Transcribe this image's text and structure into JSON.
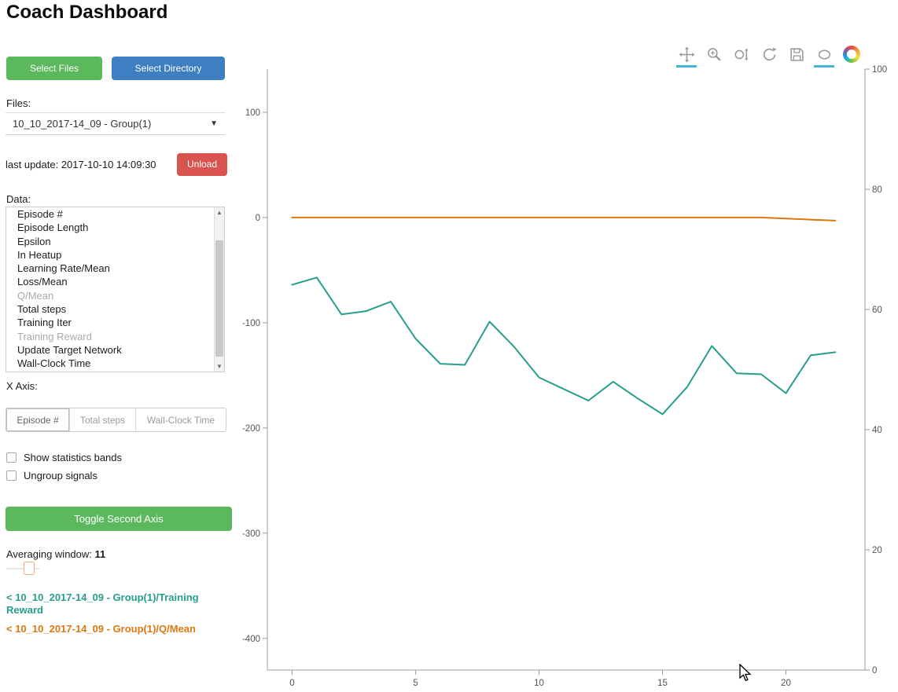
{
  "header": {
    "title": "Coach Dashboard"
  },
  "sidebar": {
    "select_files_label": "Select Files",
    "select_directory_label": "Select Directory",
    "files_label": "Files:",
    "files_selected": "10_10_2017-14_09 - Group(1)",
    "last_update": "last update: 2017-10-10 14:09:30",
    "unload_label": "Unload",
    "data_label": "Data:",
    "data_items": [
      {
        "label": "Episode #",
        "selected": false
      },
      {
        "label": "Episode Length",
        "selected": false
      },
      {
        "label": "Epsilon",
        "selected": false
      },
      {
        "label": "In Heatup",
        "selected": false
      },
      {
        "label": "Learning Rate/Mean",
        "selected": false
      },
      {
        "label": "Loss/Mean",
        "selected": false
      },
      {
        "label": "Q/Mean",
        "selected": true
      },
      {
        "label": "Total steps",
        "selected": false
      },
      {
        "label": "Training Iter",
        "selected": false
      },
      {
        "label": "Training Reward",
        "selected": true
      },
      {
        "label": "Update Target Network",
        "selected": false
      },
      {
        "label": "Wall-Clock Time",
        "selected": false
      }
    ],
    "x_axis_label": "X Axis:",
    "x_axis_options": [
      {
        "label": "Episode #",
        "active": true
      },
      {
        "label": "Total steps",
        "active": false
      },
      {
        "label": "Wall-Clock Time",
        "active": false
      }
    ],
    "checkboxes": [
      {
        "label": "Show statistics bands",
        "checked": false
      },
      {
        "label": "Ungroup signals",
        "checked": false
      }
    ],
    "toggle_second_axis_label": "Toggle Second Axis",
    "averaging_window_label": "Averaging window:",
    "averaging_window_value": "11",
    "legend": [
      {
        "label": "< 10_10_2017-14_09 - Group(1)/Training Reward",
        "color": "#279e8c"
      },
      {
        "label": "< 10_10_2017-14_09 - Group(1)/Q/Mean",
        "color": "#e0760f"
      }
    ]
  },
  "toolbar": {
    "tools": [
      {
        "name": "pan",
        "active": true
      },
      {
        "name": "box-zoom",
        "active": false
      },
      {
        "name": "wheel-zoom",
        "active": false
      },
      {
        "name": "reset",
        "active": false
      },
      {
        "name": "save",
        "active": false
      },
      {
        "name": "hover",
        "active": true
      }
    ],
    "active_underline_color": "#45b5dd"
  },
  "chart_data": {
    "type": "line",
    "x": [
      0,
      1,
      2,
      3,
      4,
      5,
      6,
      7,
      8,
      9,
      10,
      11,
      12,
      13,
      14,
      15,
      16,
      17,
      18,
      19,
      20,
      21,
      22
    ],
    "series": [
      {
        "name": "10_10_2017-14_09 - Group(1)/Training Reward",
        "color": "#279e8c",
        "axis": "left",
        "values": [
          -64,
          -57,
          -92,
          -89,
          -80,
          -115,
          -139,
          -140,
          -99,
          -123,
          -152,
          -163,
          -174,
          -156,
          -172,
          -187,
          -161,
          -122,
          -148,
          -149,
          -167,
          -131,
          -128
        ]
      },
      {
        "name": "10_10_2017-14_09 - Group(1)/Q/Mean",
        "color": "#e0760f",
        "axis": "left",
        "values": [
          0,
          0,
          0,
          0,
          0,
          0,
          0,
          0,
          0,
          0,
          0,
          0,
          0,
          0,
          0,
          0,
          0,
          0,
          0,
          0,
          -1,
          -2,
          -3
        ]
      }
    ],
    "x_axis": {
      "ticks": [
        0,
        5,
        10,
        15,
        20
      ],
      "range": [
        -1.0,
        23.2
      ]
    },
    "left_axis": {
      "ticks": [
        100,
        0,
        -100,
        -200,
        -300,
        -400
      ],
      "range": [
        -430,
        141
      ]
    },
    "right_axis": {
      "ticks": [
        0,
        20,
        40,
        60,
        80,
        100
      ],
      "range": [
        0,
        100
      ]
    },
    "grid": false,
    "legend_position": "external-left"
  }
}
